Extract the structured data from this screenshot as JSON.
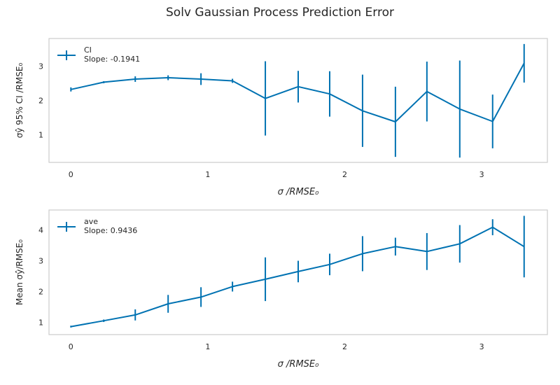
{
  "figure": {
    "title": "Solv Gaussian Process Prediction Error",
    "line_color": "#0072b2",
    "axis_color": "#cccccc",
    "text_color": "#262626"
  },
  "chart_data": [
    {
      "type": "line",
      "title": "",
      "xlabel": "σ /RMSE₀",
      "ylabel": "σŷ 95% CI /RMSE₀",
      "xlim": [
        -0.16,
        3.48
      ],
      "ylim": [
        0.2,
        3.8
      ],
      "xticks": [
        0,
        1,
        2,
        3
      ],
      "yticks": [
        1,
        2,
        3
      ],
      "legend": {
        "label": "CI",
        "slope_text": "Slope: -0.1941",
        "position": "top-left"
      },
      "series": [
        {
          "name": "CI",
          "x": [
            0.0,
            0.24,
            0.47,
            0.71,
            0.95,
            1.18,
            1.42,
            1.66,
            1.89,
            2.13,
            2.37,
            2.6,
            2.84,
            3.08,
            3.31
          ],
          "y": [
            2.32,
            2.53,
            2.62,
            2.66,
            2.62,
            2.57,
            2.06,
            2.4,
            2.19,
            1.7,
            1.38,
            2.26,
            1.75,
            1.39,
            3.08
          ],
          "err": [
            0.06,
            0.03,
            0.08,
            0.07,
            0.17,
            0.06,
            1.08,
            0.46,
            0.66,
            1.05,
            1.02,
            0.87,
            1.41,
            0.78,
            0.56
          ]
        }
      ]
    },
    {
      "type": "line",
      "title": "",
      "xlabel": "σ /RMSE₀",
      "ylabel": "Mean σŷ/RMSE₀",
      "xlim": [
        -0.16,
        3.48
      ],
      "ylim": [
        0.6,
        4.65
      ],
      "xticks": [
        0,
        1,
        2,
        3
      ],
      "yticks": [
        1,
        2,
        3,
        4
      ],
      "legend": {
        "label": "ave",
        "slope_text": "Slope: 0.9436",
        "position": "top-left"
      },
      "series": [
        {
          "name": "ave",
          "x": [
            0.0,
            0.24,
            0.47,
            0.71,
            0.95,
            1.18,
            1.42,
            1.66,
            1.89,
            2.13,
            2.37,
            2.6,
            2.84,
            3.08,
            3.31
          ],
          "y": [
            0.86,
            1.05,
            1.24,
            1.6,
            1.82,
            2.16,
            2.4,
            2.65,
            2.88,
            3.23,
            3.46,
            3.3,
            3.55,
            4.09,
            3.46
          ],
          "err": [
            0.03,
            0.04,
            0.18,
            0.29,
            0.32,
            0.16,
            0.71,
            0.35,
            0.35,
            0.57,
            0.29,
            0.6,
            0.61,
            0.26,
            1.0
          ]
        }
      ]
    }
  ]
}
